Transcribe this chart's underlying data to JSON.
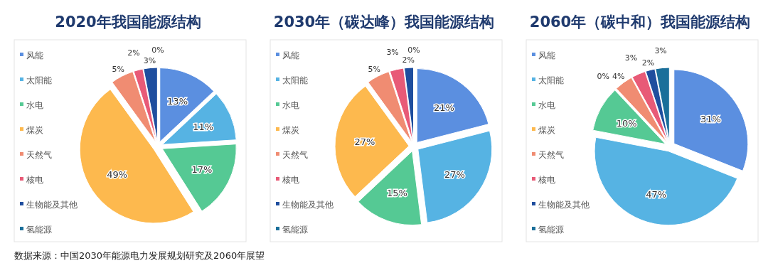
{
  "chart_data": [
    {
      "type": "pie",
      "title": "2020年我国能源结构",
      "categories": [
        "风能",
        "太阳能",
        "水电",
        "煤炭",
        "天然气",
        "核电",
        "生物能及其他",
        "氢能源"
      ],
      "values": [
        13,
        11,
        17,
        49,
        5,
        2,
        3,
        0
      ],
      "value_labels": [
        "13%",
        "11%",
        "17%",
        "49%",
        "5%",
        "2%",
        "3%",
        "0%"
      ],
      "colors": [
        "#5b8fe0",
        "#56b3e3",
        "#55c994",
        "#fdb94e",
        "#f08c72",
        "#e85a77",
        "#1f4e9e",
        "#1a6f9a"
      ],
      "legend": "left",
      "annotations": [
        "数据来源：中国2030年能源电力发展规划研究及2060年展望"
      ]
    },
    {
      "type": "pie",
      "title": "2030年（碳达峰）我国能源结构",
      "categories": [
        "风能",
        "太阳能",
        "水电",
        "煤炭",
        "天然气",
        "核电",
        "生物能及其他",
        "氢能源"
      ],
      "values": [
        21,
        27,
        15,
        27,
        5,
        3,
        2,
        0
      ],
      "value_labels": [
        "21%",
        "27%",
        "15%",
        "27%",
        "5%",
        "3%",
        "2%",
        "0%"
      ],
      "colors": [
        "#5b8fe0",
        "#56b3e3",
        "#55c994",
        "#fdb94e",
        "#f08c72",
        "#e85a77",
        "#1f4e9e",
        "#1a6f9a"
      ],
      "legend": "left"
    },
    {
      "type": "pie",
      "title": "2060年（碳中和）我国能源结构",
      "categories": [
        "风能",
        "太阳能",
        "水电",
        "煤炭",
        "天然气",
        "核电",
        "生物能及其他",
        "氢能源"
      ],
      "values": [
        31,
        47,
        10,
        0,
        4,
        3,
        2,
        3
      ],
      "value_labels": [
        "31%",
        "47%",
        "10%",
        "0%",
        "4%",
        "3%",
        "2%",
        "3%"
      ],
      "colors": [
        "#5b8fe0",
        "#56b3e3",
        "#55c994",
        "#fdb94e",
        "#f08c72",
        "#e85a77",
        "#1f4e9e",
        "#1a6f9a"
      ],
      "legend": "left"
    }
  ]
}
